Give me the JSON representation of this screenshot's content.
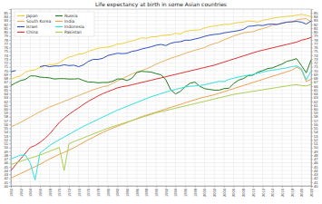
{
  "chart_data": {
    "type": "line",
    "title": "Life expectancy at birth in some Asian countries",
    "x": [
      1960,
      1961,
      1962,
      1963,
      1964,
      1965,
      1966,
      1967,
      1968,
      1969,
      1970,
      1971,
      1972,
      1973,
      1974,
      1975,
      1976,
      1977,
      1978,
      1979,
      1980,
      1981,
      1982,
      1983,
      1984,
      1985,
      1986,
      1987,
      1988,
      1989,
      1990,
      1991,
      1992,
      1993,
      1994,
      1995,
      1996,
      1997,
      1998,
      1999,
      2000,
      2001,
      2002,
      2003,
      2004,
      2005,
      2006,
      2007,
      2008,
      2009,
      2010,
      2011,
      2012,
      2013,
      2014,
      2015,
      2016,
      2017,
      2018,
      2019,
      2020,
      2021,
      2022
    ],
    "xlim": [
      1960,
      2022
    ],
    "xticks": [
      1960,
      1962,
      1964,
      1966,
      1968,
      1970,
      1972,
      1974,
      1976,
      1978,
      1980,
      1982,
      1984,
      1986,
      1988,
      1990,
      1992,
      1994,
      1996,
      1998,
      2000,
      2002,
      2004,
      2006,
      2008,
      2010,
      2012,
      2014,
      2016,
      2018,
      2020,
      2022
    ],
    "ylim": [
      40,
      86
    ],
    "yticks": [
      40,
      41,
      42,
      43,
      44,
      45,
      46,
      47,
      48,
      49,
      50,
      51,
      52,
      53,
      54,
      55,
      56,
      57,
      58,
      59,
      60,
      61,
      62,
      63,
      64,
      65,
      66,
      67,
      68,
      69,
      70,
      71,
      72,
      73,
      74,
      75,
      76,
      77,
      78,
      79,
      80,
      81,
      82,
      83,
      84,
      85
    ],
    "grid": true,
    "legend": "upper left",
    "series": [
      {
        "name": "Japan",
        "color": "#f0d040",
        "values": [
          67.7,
          68.3,
          68.6,
          69.6,
          70.0,
          70.2,
          70.8,
          71.2,
          71.5,
          71.6,
          72.0,
          72.9,
          73.5,
          73.8,
          74.3,
          74.4,
          75.0,
          75.4,
          75.8,
          76.0,
          76.1,
          76.4,
          76.9,
          77.0,
          77.4,
          77.7,
          78.1,
          78.5,
          78.4,
          78.8,
          78.8,
          79.1,
          79.2,
          79.3,
          79.7,
          79.5,
          80.2,
          80.4,
          80.5,
          80.6,
          81.1,
          81.4,
          81.6,
          81.8,
          82.0,
          82.0,
          82.3,
          82.5,
          82.6,
          82.9,
          82.8,
          82.6,
          83.1,
          83.3,
          83.6,
          83.8,
          84.0,
          84.1,
          84.2,
          84.4,
          84.6,
          84.4,
          84.0
        ]
      },
      {
        "name": "South Korea",
        "color": "#e8b060",
        "values": [
          55.4,
          55.9,
          56.5,
          57.2,
          57.9,
          58.6,
          59.3,
          59.9,
          60.5,
          61.0,
          61.5,
          62.0,
          62.5,
          63.0,
          63.5,
          64.0,
          64.5,
          65.0,
          65.4,
          65.8,
          66.0,
          66.7,
          67.3,
          67.9,
          68.5,
          69.1,
          69.6,
          70.0,
          70.5,
          71.0,
          71.7,
          72.2,
          72.7,
          73.2,
          73.6,
          74.0,
          74.5,
          74.9,
          75.3,
          75.6,
          76.0,
          76.6,
          77.0,
          77.4,
          78.0,
          78.5,
          79.0,
          79.4,
          79.8,
          80.0,
          80.1,
          80.6,
          80.9,
          81.3,
          81.8,
          82.0,
          82.4,
          82.6,
          82.6,
          83.2,
          83.4,
          83.5,
          82.7
        ]
      },
      {
        "name": "Israel",
        "color": "#3050c0",
        "values": [
          69.7,
          70.0,
          null,
          null,
          null,
          null,
          71.0,
          71.3,
          71.0,
          71.2,
          71.2,
          71.5,
          71.3,
          71.4,
          71.0,
          71.5,
          72.4,
          72.9,
          72.9,
          73.2,
          73.9,
          74.2,
          74.5,
          74.4,
          74.5,
          75.0,
          75.2,
          75.6,
          75.9,
          76.2,
          76.6,
          76.8,
          76.5,
          77.1,
          77.4,
          77.5,
          77.9,
          77.9,
          78.2,
          78.5,
          78.9,
          79.2,
          79.4,
          79.5,
          79.8,
          80.0,
          80.2,
          80.4,
          80.7,
          81.5,
          81.6,
          81.8,
          81.7,
          82.0,
          82.1,
          82.0,
          82.3,
          82.6,
          82.7,
          82.8,
          82.6,
          82.1,
          82.9
        ]
      },
      {
        "name": "China",
        "color": "#e03030",
        "values": [
          44.0,
          45.5,
          47.0,
          48.5,
          50.0,
          50.5,
          51.3,
          52.3,
          53.5,
          55.0,
          56.5,
          57.6,
          58.6,
          59.5,
          60.3,
          61.2,
          62.0,
          62.7,
          63.4,
          64.0,
          64.5,
          65.0,
          65.5,
          65.8,
          66.0,
          66.3,
          66.6,
          66.9,
          67.2,
          67.5,
          67.8,
          68.1,
          68.4,
          68.7,
          69.0,
          69.3,
          69.6,
          69.9,
          70.2,
          70.5,
          70.8,
          71.1,
          71.4,
          71.8,
          72.2,
          72.6,
          73.0,
          73.4,
          73.8,
          74.2,
          74.6,
          75.0,
          75.3,
          75.6,
          75.9,
          76.2,
          76.5,
          76.8,
          77.1,
          77.4,
          77.9,
          78.2,
          78.6
        ]
      },
      {
        "name": "Russia",
        "color": "#208020",
        "values": [
          66.1,
          66.8,
          67.4,
          67.7,
          68.6,
          68.6,
          68.3,
          68.2,
          68.1,
          67.8,
          67.9,
          67.9,
          67.8,
          67.8,
          67.9,
          67.4,
          67.0,
          67.0,
          66.8,
          66.9,
          66.9,
          67.2,
          67.8,
          67.8,
          67.4,
          68.0,
          69.5,
          69.8,
          69.7,
          69.6,
          69.2,
          68.9,
          67.6,
          65.0,
          63.9,
          64.6,
          65.8,
          66.7,
          67.0,
          65.9,
          65.3,
          65.1,
          64.9,
          64.9,
          65.3,
          65.4,
          66.6,
          67.5,
          67.9,
          68.7,
          68.8,
          69.6,
          70.0,
          70.5,
          70.7,
          71.2,
          71.7,
          72.4,
          72.7,
          73.1,
          71.3,
          69.4,
          72.8
        ]
      },
      {
        "name": "India",
        "color": "#f0a050",
        "values": [
          42.0,
          42.6,
          43.2,
          43.8,
          44.4,
          45.0,
          45.6,
          46.3,
          47.0,
          47.6,
          48.2,
          48.7,
          49.3,
          49.9,
          50.6,
          51.3,
          52.0,
          52.6,
          53.3,
          53.9,
          54.5,
          55.0,
          55.5,
          56.0,
          56.5,
          57.0,
          57.5,
          58.0,
          58.4,
          58.8,
          59.2,
          59.6,
          60.0,
          60.4,
          60.8,
          61.2,
          61.6,
          62.0,
          62.4,
          62.8,
          63.1,
          63.4,
          63.7,
          64.1,
          64.5,
          64.9,
          65.3,
          65.7,
          66.1,
          66.5,
          66.9,
          67.3,
          67.7,
          68.1,
          68.5,
          68.9,
          69.3,
          69.7,
          70.1,
          70.9,
          70.2,
          67.2,
          67.7
        ]
      },
      {
        "name": "Indonesia",
        "color": "#30e0e0",
        "values": [
          47.0,
          47.5,
          48.0,
          48.0,
          46.0,
          41.5,
          48.5,
          49.5,
          50.5,
          51.3,
          52.0,
          52.7,
          53.4,
          54.1,
          54.8,
          55.5,
          56.1,
          56.7,
          57.3,
          57.9,
          58.5,
          59.1,
          59.7,
          60.2,
          60.7,
          61.2,
          61.7,
          62.2,
          62.7,
          63.2,
          63.6,
          64.0,
          64.4,
          64.8,
          65.1,
          65.4,
          65.7,
          65.9,
          66.0,
          66.1,
          66.3,
          66.6,
          66.9,
          67.2,
          67.1,
          67.7,
          68.0,
          68.3,
          68.6,
          68.8,
          69.0,
          69.3,
          69.6,
          69.9,
          70.1,
          70.3,
          70.5,
          70.7,
          71.0,
          71.2,
          70.5,
          67.6,
          69.9
        ]
      },
      {
        "name": "Pakistan",
        "color": "#a8d050",
        "values": [
          45.5,
          46.0,
          46.4,
          46.8,
          47.2,
          47.6,
          48.0,
          48.5,
          49.0,
          49.5,
          50.0,
          44.0,
          51.0,
          51.5,
          52.0,
          52.5,
          53.0,
          53.5,
          54.0,
          54.5,
          55.0,
          55.4,
          55.8,
          56.2,
          56.6,
          57.0,
          57.4,
          57.8,
          58.2,
          58.6,
          59.0,
          59.3,
          59.6,
          59.9,
          60.2,
          60.5,
          60.8,
          61.1,
          61.4,
          61.7,
          62.0,
          62.3,
          62.6,
          62.9,
          63.2,
          63.5,
          63.8,
          64.0,
          64.2,
          64.4,
          64.6,
          64.8,
          65.0,
          65.2,
          65.4,
          65.6,
          65.8,
          66.0,
          66.2,
          66.3,
          66.1,
          66.0,
          66.4
        ]
      }
    ]
  }
}
